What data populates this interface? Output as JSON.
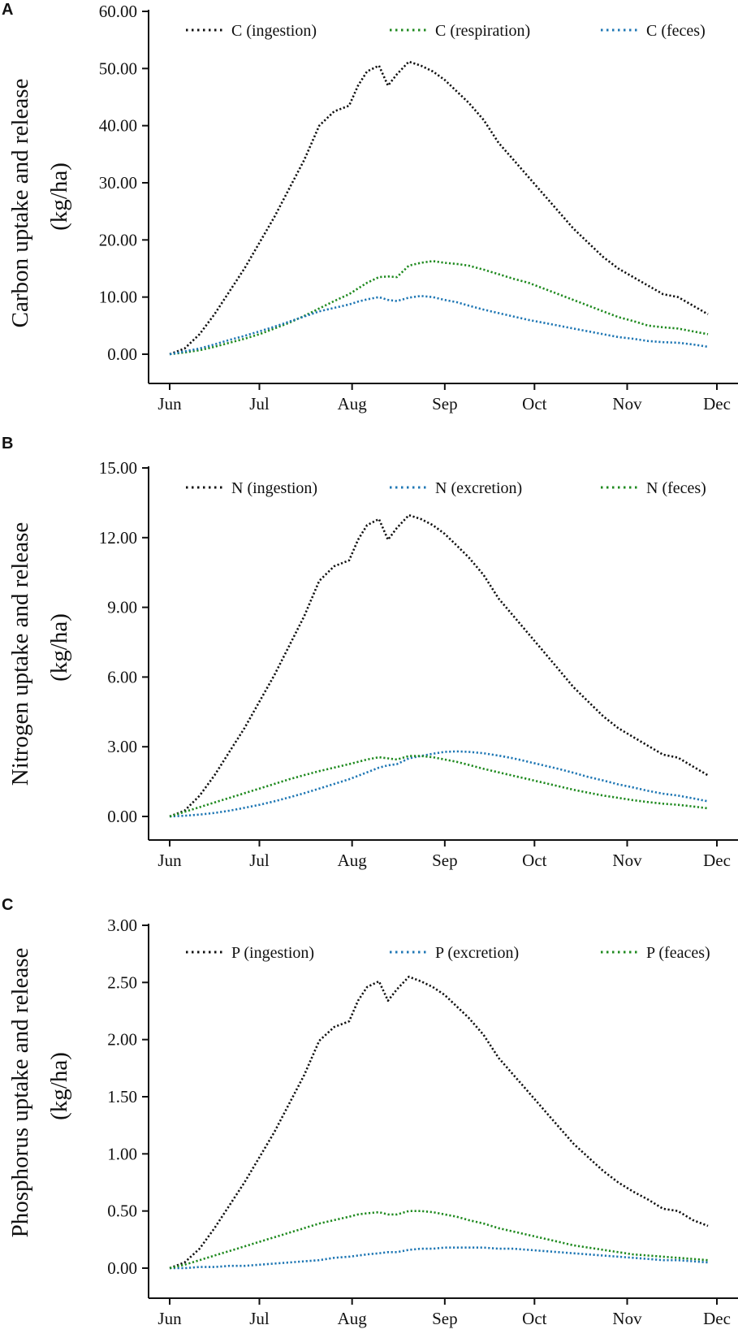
{
  "chart_data": [
    {
      "type": "line",
      "panel_label": "A",
      "ylabel_lines": [
        "Carbon uptake and release",
        "(kg/ha)"
      ],
      "xlabel": "",
      "x_unit": "days since Jun 1",
      "xticks": [
        {
          "label": "Jun",
          "x": 0
        },
        {
          "label": "Jul",
          "x": 30
        },
        {
          "label": "Aug",
          "x": 61
        },
        {
          "label": "Sep",
          "x": 92
        },
        {
          "label": "Oct",
          "x": 122
        },
        {
          "label": "Nov",
          "x": 153
        },
        {
          "label": "Dec",
          "x": 183
        }
      ],
      "ylim": [
        0,
        60
      ],
      "yticks": [
        "0.00",
        "10.00",
        "20.00",
        "30.00",
        "40.00",
        "50.00",
        "60.00"
      ],
      "ytick_values": [
        0,
        10,
        20,
        30,
        40,
        50,
        60
      ],
      "legend_position": "top",
      "x": [
        0,
        5,
        10,
        15,
        20,
        25,
        30,
        35,
        40,
        45,
        50,
        55,
        60,
        63,
        66,
        70,
        73,
        76,
        80,
        84,
        88,
        92,
        96,
        100,
        105,
        110,
        115,
        120,
        125,
        130,
        135,
        140,
        145,
        150,
        155,
        160,
        165,
        170,
        175,
        180
      ],
      "series": [
        {
          "name": "C (ingestion)",
          "color": "#111111",
          "values": [
            0,
            1,
            3.5,
            7,
            11,
            15,
            19.5,
            24,
            29,
            34,
            40,
            42.5,
            43.5,
            47,
            49.5,
            50.5,
            47,
            49,
            51.2,
            50.5,
            49.5,
            48,
            46,
            44,
            41,
            37,
            34,
            31,
            28,
            25,
            22,
            19.5,
            17,
            15,
            13.5,
            12,
            10.5,
            10,
            8.5,
            7
          ]
        },
        {
          "name": "C (respiration)",
          "color": "#1f8a1f",
          "values": [
            0,
            0.3,
            0.7,
            1.3,
            2,
            2.7,
            3.5,
            4.5,
            5.5,
            6.7,
            8,
            9.3,
            10.5,
            11.5,
            12.5,
            13.5,
            13.6,
            13.5,
            15.5,
            16,
            16.3,
            16,
            15.8,
            15.5,
            14.8,
            14,
            13.2,
            12.5,
            11.5,
            10.5,
            9.5,
            8.5,
            7.5,
            6.5,
            5.8,
            5,
            4.7,
            4.5,
            4,
            3.5
          ]
        },
        {
          "name": "C (feces)",
          "color": "#1f77b4",
          "values": [
            0,
            0.5,
            1,
            1.7,
            2.5,
            3.2,
            4,
            4.8,
            5.7,
            6.6,
            7.5,
            8.1,
            8.7,
            9.2,
            9.6,
            10,
            9.5,
            9.3,
            9.9,
            10.2,
            10,
            9.5,
            9.1,
            8.5,
            7.8,
            7.2,
            6.6,
            6,
            5.5,
            5,
            4.5,
            4,
            3.5,
            3,
            2.7,
            2.3,
            2.1,
            2,
            1.7,
            1.3
          ]
        }
      ]
    },
    {
      "type": "line",
      "panel_label": "B",
      "ylabel_lines": [
        "Nitrogen uptake and release",
        "(kg/ha)"
      ],
      "xlabel": "",
      "x_unit": "days since Jun 1",
      "xticks": [
        {
          "label": "Jun",
          "x": 0
        },
        {
          "label": "Jul",
          "x": 30
        },
        {
          "label": "Aug",
          "x": 61
        },
        {
          "label": "Sep",
          "x": 92
        },
        {
          "label": "Oct",
          "x": 122
        },
        {
          "label": "Nov",
          "x": 153
        },
        {
          "label": "Dec",
          "x": 183
        }
      ],
      "ylim": [
        0,
        15
      ],
      "yticks": [
        "0.00",
        "3.00",
        "6.00",
        "9.00",
        "12.00",
        "15.00"
      ],
      "ytick_values": [
        0,
        3,
        6,
        9,
        12,
        15
      ],
      "legend_position": "top",
      "x": [
        0,
        5,
        10,
        15,
        20,
        25,
        30,
        35,
        40,
        45,
        50,
        55,
        60,
        63,
        66,
        70,
        73,
        76,
        80,
        84,
        88,
        92,
        96,
        100,
        105,
        110,
        115,
        120,
        125,
        130,
        135,
        140,
        145,
        150,
        155,
        160,
        165,
        170,
        175,
        180
      ],
      "series": [
        {
          "name": "N (ingestion)",
          "color": "#111111",
          "values": [
            0,
            0.25,
            0.89,
            1.77,
            2.79,
            3.8,
            4.94,
            6.08,
            7.35,
            8.62,
            10.14,
            10.77,
            11.02,
            11.91,
            12.54,
            12.8,
            11.91,
            12.42,
            12.97,
            12.8,
            12.54,
            12.16,
            11.66,
            11.15,
            10.39,
            9.38,
            8.62,
            7.86,
            7.1,
            6.34,
            5.57,
            4.94,
            4.31,
            3.8,
            3.42,
            3.04,
            2.66,
            2.53,
            2.15,
            1.77
          ]
        },
        {
          "name": "N (excretion)",
          "color": "#1f77b4",
          "values": [
            0,
            0.03,
            0.08,
            0.15,
            0.25,
            0.37,
            0.5,
            0.65,
            0.82,
            1,
            1.2,
            1.4,
            1.6,
            1.75,
            1.9,
            2.1,
            2.2,
            2.25,
            2.5,
            2.6,
            2.7,
            2.78,
            2.8,
            2.78,
            2.72,
            2.62,
            2.5,
            2.35,
            2.2,
            2.05,
            1.88,
            1.7,
            1.55,
            1.38,
            1.25,
            1.1,
            0.98,
            0.9,
            0.78,
            0.65
          ]
        },
        {
          "name": "N (feces)",
          "color": "#1f8a1f",
          "values": [
            0,
            0.2,
            0.4,
            0.6,
            0.8,
            1,
            1.2,
            1.4,
            1.6,
            1.78,
            1.95,
            2.1,
            2.25,
            2.35,
            2.45,
            2.55,
            2.5,
            2.45,
            2.6,
            2.6,
            2.55,
            2.45,
            2.35,
            2.22,
            2.05,
            1.9,
            1.75,
            1.6,
            1.45,
            1.3,
            1.15,
            1.02,
            0.9,
            0.8,
            0.7,
            0.62,
            0.55,
            0.5,
            0.43,
            0.35
          ]
        }
      ]
    },
    {
      "type": "line",
      "panel_label": "C",
      "ylabel_lines": [
        "Phosphorus uptake and release",
        "(kg/ha)"
      ],
      "xlabel": "",
      "x_unit": "days since Jun 1",
      "xticks": [
        {
          "label": "Jun",
          "x": 0
        },
        {
          "label": "Jul",
          "x": 30
        },
        {
          "label": "Aug",
          "x": 61
        },
        {
          "label": "Sep",
          "x": 92
        },
        {
          "label": "Oct",
          "x": 122
        },
        {
          "label": "Nov",
          "x": 153
        },
        {
          "label": "Dec",
          "x": 183
        }
      ],
      "ylim": [
        0,
        3
      ],
      "yticks": [
        "0.00",
        "0.50",
        "1.00",
        "1.50",
        "2.00",
        "2.50",
        "3.00"
      ],
      "ytick_values": [
        0,
        0.5,
        1,
        1.5,
        2,
        2.5,
        3
      ],
      "legend_position": "top",
      "x": [
        0,
        5,
        10,
        15,
        20,
        25,
        30,
        35,
        40,
        45,
        50,
        55,
        60,
        63,
        66,
        70,
        73,
        76,
        80,
        84,
        88,
        92,
        96,
        100,
        105,
        110,
        115,
        120,
        125,
        130,
        135,
        140,
        145,
        150,
        155,
        160,
        165,
        170,
        175,
        180
      ],
      "series": [
        {
          "name": "P (ingestion)",
          "color": "#111111",
          "values": [
            0,
            0.05,
            0.17,
            0.35,
            0.55,
            0.75,
            0.97,
            1.19,
            1.44,
            1.69,
            1.99,
            2.11,
            2.16,
            2.34,
            2.46,
            2.51,
            2.34,
            2.44,
            2.55,
            2.51,
            2.46,
            2.39,
            2.29,
            2.19,
            2.04,
            1.84,
            1.69,
            1.54,
            1.39,
            1.24,
            1.09,
            0.97,
            0.85,
            0.75,
            0.67,
            0.6,
            0.52,
            0.5,
            0.42,
            0.37
          ]
        },
        {
          "name": "P (excretion)",
          "color": "#1f77b4",
          "values": [
            0,
            0,
            0.01,
            0.01,
            0.02,
            0.02,
            0.03,
            0.04,
            0.05,
            0.06,
            0.07,
            0.09,
            0.1,
            0.11,
            0.12,
            0.13,
            0.14,
            0.14,
            0.16,
            0.17,
            0.17,
            0.18,
            0.18,
            0.18,
            0.18,
            0.17,
            0.17,
            0.16,
            0.15,
            0.14,
            0.13,
            0.12,
            0.11,
            0.1,
            0.09,
            0.08,
            0.07,
            0.07,
            0.06,
            0.05
          ]
        },
        {
          "name": "P (feaces)",
          "color": "#1f8a1f",
          "values": [
            0,
            0.03,
            0.07,
            0.11,
            0.15,
            0.19,
            0.23,
            0.27,
            0.31,
            0.35,
            0.39,
            0.42,
            0.45,
            0.47,
            0.48,
            0.49,
            0.47,
            0.47,
            0.5,
            0.5,
            0.49,
            0.47,
            0.45,
            0.42,
            0.39,
            0.35,
            0.32,
            0.29,
            0.26,
            0.23,
            0.2,
            0.18,
            0.16,
            0.14,
            0.12,
            0.11,
            0.1,
            0.09,
            0.08,
            0.07
          ]
        }
      ]
    }
  ]
}
